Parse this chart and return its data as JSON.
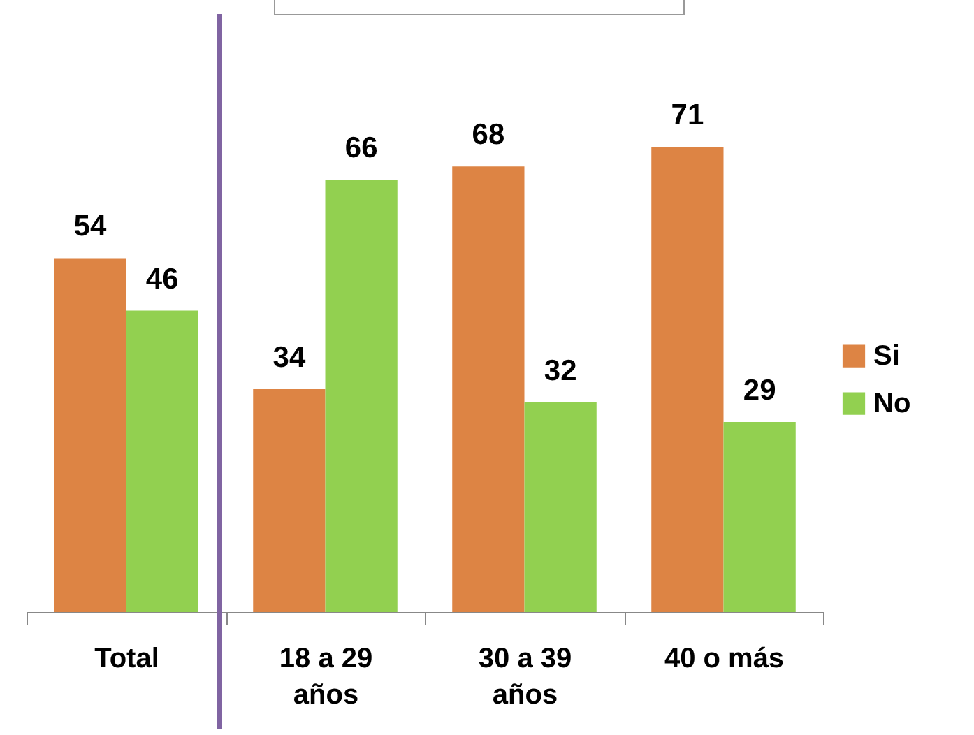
{
  "chart_data": {
    "type": "bar",
    "categories": [
      "Total",
      "18 a 29 años",
      "30 a 39 años",
      "40 o más"
    ],
    "series": [
      {
        "name": "Si",
        "color": "#dd8444",
        "values": [
          54,
          34,
          68,
          71
        ]
      },
      {
        "name": "No",
        "color": "#92d050",
        "values": [
          46,
          66,
          32,
          29
        ]
      }
    ],
    "data_labels": true,
    "legend": "right",
    "grid": false
  }
}
